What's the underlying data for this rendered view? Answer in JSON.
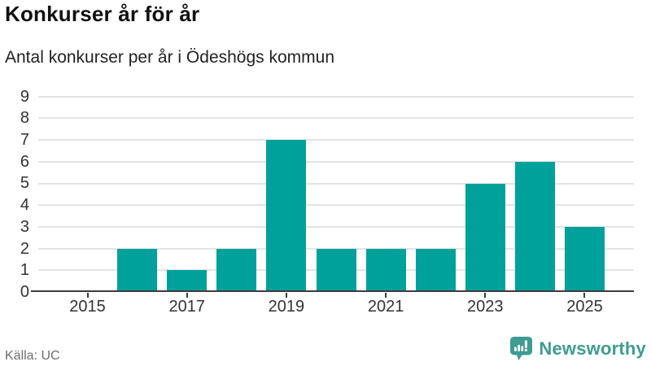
{
  "header": {
    "title": "Konkurser år för år",
    "subtitle": "Antal konkurser per år i Ödeshögs kommun"
  },
  "chart_data": {
    "type": "bar",
    "title": "Konkurser år för år",
    "subtitle": "Antal konkurser per år i Ödeshögs kommun",
    "categories": [
      2015,
      2016,
      2017,
      2018,
      2019,
      2020,
      2021,
      2022,
      2023,
      2024,
      2025
    ],
    "values": [
      0,
      2,
      1,
      2,
      7,
      2,
      2,
      2,
      5,
      6,
      3
    ],
    "xlabel": "",
    "ylabel": "",
    "ylim": [
      0,
      9
    ],
    "yticks": [
      0,
      1,
      2,
      3,
      4,
      5,
      6,
      7,
      8,
      9
    ],
    "xticks": [
      2015,
      2017,
      2019,
      2021,
      2023,
      2025
    ],
    "grid": true,
    "legend_position": "none"
  },
  "footer": {
    "source_label": "Källa: UC",
    "brand_name": "Newsworthy"
  },
  "colors": {
    "bar": "#00a19a",
    "brand": "#3e9c92",
    "axis_line": "#3c3c3c",
    "grid_line": "#e4e4e4",
    "text": "#333333",
    "muted_text": "#6f6f6f"
  }
}
